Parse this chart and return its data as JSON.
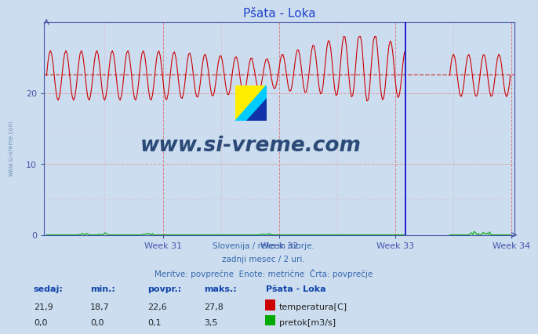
{
  "title": "Pšata - Loka",
  "bg_color": "#ccddf0",
  "plot_bg_color": "#ccddf0",
  "axis_color": "#4455aa",
  "temp_color": "#cc0000",
  "flow_color": "#00aa00",
  "avg_line_color": "#cc4444",
  "gap_line_color": "#0000cc",
  "x_ticks": [
    90,
    180,
    270,
    360
  ],
  "week_labels": [
    "Week 31",
    "Week 32",
    "Week 33",
    "Week 34"
  ],
  "avg_temp": 22.6,
  "min_temp": 18.7,
  "max_temp": 27.8,
  "current_temp": 21.9,
  "avg_flow": 0.1,
  "min_flow": 0.0,
  "max_flow": 3.5,
  "current_flow": 0.0,
  "subtitle1": "Slovenija / reke in morje.",
  "subtitle2": "zadnji mesec / 2 uri.",
  "subtitle3": "Meritve: povprečne  Enote: metrične  Črta: povprečje",
  "legend_title": "Pšata - Loka",
  "label_temp": "temperatura[C]",
  "label_flow": "pretok[m3/s]",
  "watermark": "www.si-vreme.com",
  "watermark_color": "#1a3a6a",
  "n_points": 360,
  "gap_start": 278,
  "gap_end": 312,
  "y_min": 0,
  "y_max": 30,
  "y_ticks": [
    0,
    10,
    20
  ]
}
